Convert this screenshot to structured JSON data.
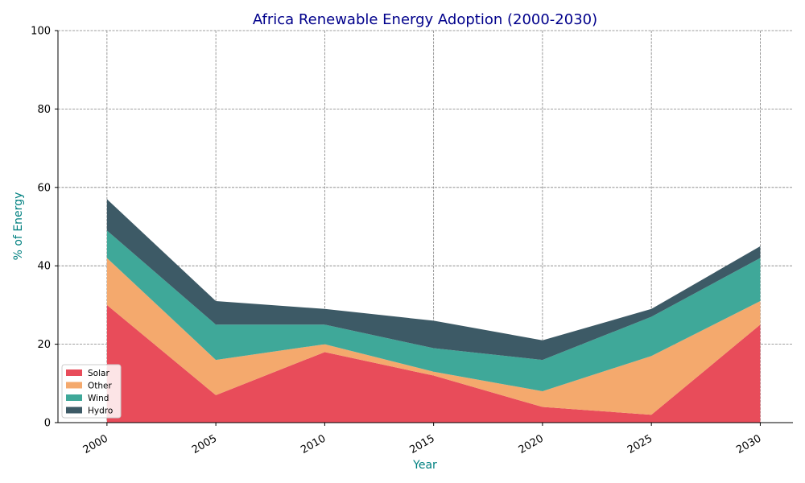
{
  "chart_data": {
    "type": "area",
    "stacked": true,
    "title": "Africa Renewable Energy Adoption (2000-2030)",
    "xlabel": "Year",
    "ylabel": "% of Energy",
    "x": [
      2000,
      2005,
      2010,
      2015,
      2020,
      2025,
      2030
    ],
    "xticks": [
      "2000",
      "2005",
      "2010",
      "2015",
      "2020",
      "2025",
      "2030"
    ],
    "yticks": [
      "0",
      "20",
      "40",
      "60",
      "80",
      "100"
    ],
    "ylim": [
      0,
      100
    ],
    "grid": true,
    "legend_position": "lower-left",
    "series": [
      {
        "name": "Solar",
        "color": "#e84c5a",
        "values": [
          30,
          7,
          18,
          12,
          4,
          2,
          25
        ]
      },
      {
        "name": "Other",
        "color": "#f4a96d",
        "values": [
          12,
          9,
          2,
          1,
          4,
          15,
          6
        ]
      },
      {
        "name": "Wind",
        "color": "#3fa899",
        "values": [
          7,
          9,
          5,
          6,
          8,
          10,
          11
        ]
      },
      {
        "name": "Hydro",
        "color": "#3d5a66",
        "values": [
          8,
          6,
          4,
          7,
          5,
          2,
          3
        ]
      }
    ],
    "colors": {
      "title": "#00008b",
      "axis_titles": "#008080",
      "grid": "#808080"
    }
  }
}
